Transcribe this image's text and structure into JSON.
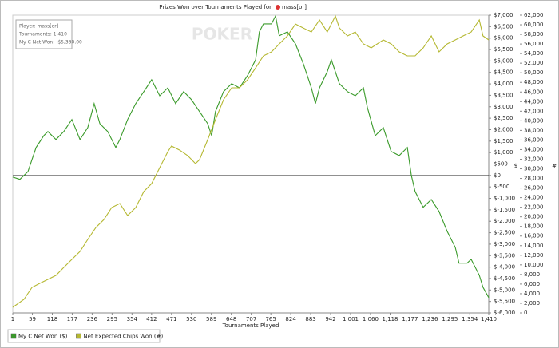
{
  "chart_data": {
    "type": "line",
    "title": "Prizes Won over Tournaments Played for",
    "player": "mass[or]",
    "watermark": "POKER",
    "annotations": [
      "Player: mass[or]",
      "Tournaments: 1,410",
      "My C Net Won: -$5,330.00"
    ],
    "x_label": "Tournaments Played",
    "y_label": "$",
    "y2_label": "#",
    "xlim": [
      1,
      1410
    ],
    "xticks": [
      1,
      59,
      118,
      177,
      236,
      295,
      354,
      412,
      471,
      530,
      589,
      648,
      707,
      765,
      824,
      883,
      942,
      {
        "value": 1001,
        "label": "1,001"
      },
      {
        "value": 1060,
        "label": "1,060"
      },
      {
        "value": 1118,
        "label": "1,118"
      },
      {
        "value": 1177,
        "label": "1,177"
      },
      {
        "value": 1236,
        "label": "1,236"
      },
      {
        "value": 1295,
        "label": "1,295"
      },
      {
        "value": 1354,
        "label": "1,354"
      },
      {
        "value": 1410,
        "label": "1,410"
      }
    ],
    "ylim": [
      -6000,
      7000
    ],
    "yticks": [
      {
        "value": -6000,
        "label": "$-6,000"
      },
      {
        "value": -5500,
        "label": "$-5,500"
      },
      {
        "value": -5000,
        "label": "$-5,000"
      },
      {
        "value": -4500,
        "label": "$-4,500"
      },
      {
        "value": -4000,
        "label": "$-4,000"
      },
      {
        "value": -3500,
        "label": "$-3,500"
      },
      {
        "value": -3000,
        "label": "$-3,000"
      },
      {
        "value": -2500,
        "label": "$-2,500"
      },
      {
        "value": -2000,
        "label": "$-2,000"
      },
      {
        "value": -1500,
        "label": "$-1,500"
      },
      {
        "value": -1000,
        "label": "$-1,000"
      },
      {
        "value": -500,
        "label": "$-500"
      },
      {
        "value": 0,
        "label": "$0"
      },
      {
        "value": 500,
        "label": "$500"
      },
      {
        "value": 1000,
        "label": "$1,000"
      },
      {
        "value": 1500,
        "label": "$1,500"
      },
      {
        "value": 2000,
        "label": "$2,000"
      },
      {
        "value": 2500,
        "label": "$2,500"
      },
      {
        "value": 3000,
        "label": "$3,000"
      },
      {
        "value": 3500,
        "label": "$3,500"
      },
      {
        "value": 4000,
        "label": "$4,000"
      },
      {
        "value": 4500,
        "label": "$4,500"
      },
      {
        "value": 5000,
        "label": "$5,000"
      },
      {
        "value": 5500,
        "label": "$5,500"
      },
      {
        "value": 6000,
        "label": "$6,000"
      },
      {
        "value": 6500,
        "label": "$6,500"
      },
      {
        "value": 7000,
        "label": "$7,000"
      }
    ],
    "y2lim": [
      0,
      62000
    ],
    "y2ticks": [
      0,
      {
        "value": 2000,
        "label": "2,000"
      },
      {
        "value": 4000,
        "label": "4,000"
      },
      {
        "value": 6000,
        "label": "6,000"
      },
      {
        "value": 8000,
        "label": "8,000"
      },
      {
        "value": 10000,
        "label": "10,000"
      },
      {
        "value": 12000,
        "label": "12,000"
      },
      {
        "value": 14000,
        "label": "14,000"
      },
      {
        "value": 16000,
        "label": "16,000"
      },
      {
        "value": 18000,
        "label": "18,000"
      },
      {
        "value": 20000,
        "label": "20,000"
      },
      {
        "value": 22000,
        "label": "22,000"
      },
      {
        "value": 24000,
        "label": "24,000"
      },
      {
        "value": 26000,
        "label": "26,000"
      },
      {
        "value": 28000,
        "label": "28,000"
      },
      {
        "value": 30000,
        "label": "30,000"
      },
      {
        "value": 32000,
        "label": "32,000"
      },
      {
        "value": 34000,
        "label": "34,000"
      },
      {
        "value": 36000,
        "label": "36,000"
      },
      {
        "value": 38000,
        "label": "38,000"
      },
      {
        "value": 40000,
        "label": "40,000"
      },
      {
        "value": 42000,
        "label": "42,000"
      },
      {
        "value": 44000,
        "label": "44,000"
      },
      {
        "value": 46000,
        "label": "46,000"
      },
      {
        "value": 48000,
        "label": "48,000"
      },
      {
        "value": 50000,
        "label": "50,000"
      },
      {
        "value": 52000,
        "label": "52,000"
      },
      {
        "value": 54000,
        "label": "54,000"
      },
      {
        "value": 56000,
        "label": "56,000"
      },
      {
        "value": 58000,
        "label": "58,000"
      },
      {
        "value": 60000,
        "label": "60,000"
      },
      {
        "value": 62000,
        "label": "62,000"
      }
    ],
    "series": [
      {
        "name": "My C Net Won ($)",
        "color": "#3a9a2a",
        "axis": "y",
        "x": [
          1,
          22,
          46,
          58,
          70,
          93,
          105,
          129,
          152,
          176,
          200,
          223,
          242,
          259,
          282,
          306,
          318,
          341,
          365,
          389,
          412,
          436,
          460,
          483,
          507,
          530,
          554,
          578,
          590,
          601,
          625,
          649,
          672,
          696,
          720,
          731,
          743,
          767,
          779,
          790,
          814,
          838,
          861,
          885,
          897,
          909,
          932,
          944,
          968,
          992,
          1015,
          1039,
          1051,
          1074,
          1098,
          1121,
          1145,
          1169,
          1181,
          1192,
          1216,
          1240,
          1263,
          1287,
          1311,
          1322,
          1346,
          1358,
          1382,
          1393,
          1410
        ],
        "values": [
          -70,
          -170,
          170,
          700,
          1220,
          1740,
          1920,
          1570,
          1920,
          2440,
          1570,
          2090,
          3140,
          2260,
          1920,
          1220,
          1570,
          2440,
          3140,
          3660,
          4180,
          3480,
          3830,
          3140,
          3660,
          3310,
          2790,
          2260,
          1740,
          2790,
          3660,
          4010,
          3830,
          4360,
          5050,
          6270,
          6620,
          6620,
          6970,
          6100,
          6270,
          5750,
          4880,
          3830,
          3140,
          3830,
          4530,
          5050,
          4010,
          3660,
          3480,
          3830,
          2960,
          1740,
          2090,
          1050,
          870,
          1220,
          0,
          -700,
          -1390,
          -1050,
          -1570,
          -2440,
          -3140,
          -3830,
          -3830,
          -3660,
          -4360,
          -4880,
          -5330
        ]
      },
      {
        "name": "Net Expected Chips Won (#)",
        "color": "#b5b832",
        "axis": "y2",
        "x": [
          1,
          34,
          58,
          81,
          105,
          129,
          152,
          176,
          200,
          223,
          247,
          271,
          294,
          318,
          341,
          365,
          389,
          412,
          436,
          460,
          471,
          495,
          519,
          542,
          554,
          578,
          601,
          625,
          649,
          672,
          696,
          720,
          743,
          767,
          790,
          814,
          838,
          861,
          885,
          909,
          932,
          956,
          968,
          992,
          1015,
          1039,
          1062,
          1098,
          1121,
          1145,
          1169,
          1192,
          1216,
          1240,
          1263,
          1287,
          1311,
          1334,
          1358,
          1382,
          1393,
          1410
        ],
        "values": [
          1160,
          2830,
          5320,
          6150,
          6980,
          7810,
          9470,
          11140,
          12800,
          15290,
          17780,
          19450,
          21940,
          22770,
          20280,
          21940,
          25260,
          26920,
          30240,
          33570,
          34740,
          33900,
          32740,
          31080,
          31910,
          36070,
          40220,
          44380,
          46870,
          46870,
          48530,
          51020,
          53520,
          54350,
          56010,
          57670,
          60160,
          59330,
          58500,
          61000,
          58500,
          61830,
          59330,
          57670,
          58500,
          56010,
          55180,
          56840,
          56010,
          54350,
          53520,
          53520,
          55180,
          57670,
          54350,
          56010,
          56840,
          57670,
          58500,
          61000,
          57670,
          56840
        ]
      }
    ]
  }
}
